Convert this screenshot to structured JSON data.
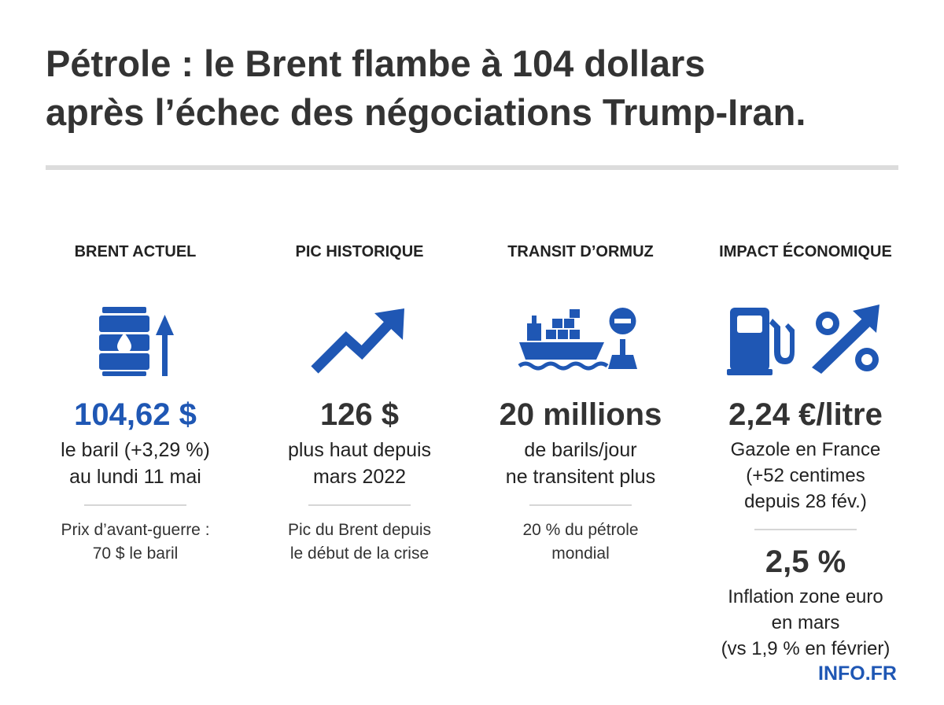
{
  "headline": {
    "line1": "Pétrole : le Brent flambe à 104 dollars",
    "line2": "après l’échec des négociations Trump-Iran."
  },
  "colors": {
    "accent": "#1f57b4",
    "text": "#2b2b2b",
    "rule": "#dcdcdc"
  },
  "columns": [
    {
      "label": "BRENT ACTUEL",
      "icon": "oil-barrel-up-icon",
      "value": "104,62 $",
      "desc": [
        "le baril (+3,29 %)",
        "au lundi 11 mai"
      ],
      "note": [
        "Prix d’avant-guerre :",
        "70 $ le baril"
      ]
    },
    {
      "label": "PIC HISTORIQUE",
      "icon": "trend-up-arrow-icon",
      "value": "126 $",
      "desc": [
        "plus haut depuis",
        "mars 2022"
      ],
      "note": [
        "Pic du Brent depuis",
        "le début de la crise"
      ]
    },
    {
      "label": "TRANSIT D’ORMUZ",
      "icon": "tanker-ship-blocked-icon",
      "value": "20 millions",
      "desc": [
        "de barils/jour",
        "ne transitent plus"
      ],
      "note": [
        "20 % du pétrole",
        "mondial"
      ]
    },
    {
      "label": "IMPACT ÉCONOMIQUE",
      "icon": "fuel-pump-percent-icon",
      "value": "2,24 €/litre",
      "desc": [
        "Gazole en France",
        "(+52 centimes",
        "depuis 28 fév.)"
      ],
      "value2": "2,5 %",
      "desc2": [
        "Inflation zone euro",
        "en mars",
        "(vs 1,9 % en février)"
      ]
    }
  ],
  "brand": "INFO.FR"
}
